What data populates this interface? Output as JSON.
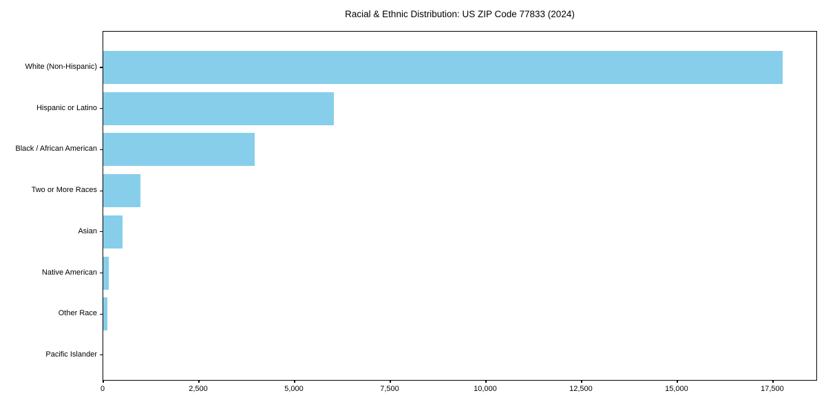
{
  "chart_data": {
    "type": "bar",
    "orientation": "horizontal",
    "title": "Racial & Ethnic Distribution: US ZIP Code 77833 (2024)",
    "categories": [
      "White (Non-Hispanic)",
      "Hispanic or Latino",
      "Black / African American",
      "Two or More Races",
      "Asian",
      "Native American",
      "Other Race",
      "Pacific Islander"
    ],
    "values": [
      17750,
      6030,
      3960,
      970,
      505,
      145,
      110,
      0
    ],
    "x_ticks": [
      0,
      2500,
      5000,
      7500,
      10000,
      12500,
      15000,
      17500
    ],
    "x_tick_labels": [
      "0",
      "2,500",
      "5,000",
      "7,500",
      "10,000",
      "12,500",
      "15,000",
      "17,500"
    ],
    "xlim": [
      0,
      18670
    ],
    "xlabel": "",
    "ylabel": "",
    "grid": false,
    "legend_position": "none",
    "bar_color": "#87CEEB",
    "largest_category_first": true
  },
  "colors": {
    "bar": "#87CEEB",
    "axis": "#000000",
    "text": "#000000",
    "background": "#ffffff"
  }
}
